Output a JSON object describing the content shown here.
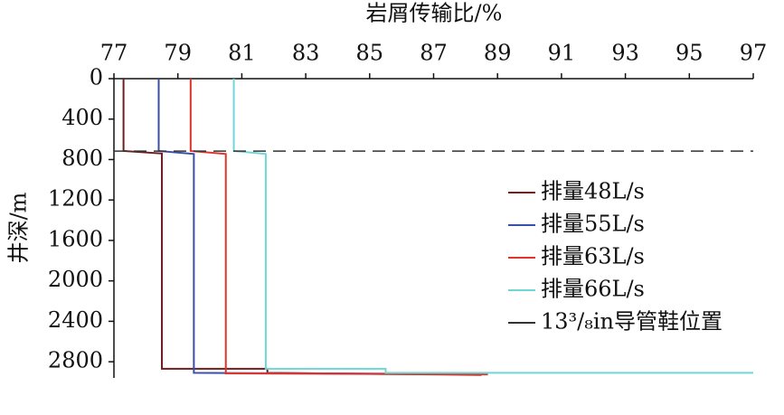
{
  "chart_data": {
    "type": "line",
    "xlabel": "岩屑传输比/%",
    "ylabel": "井深/m",
    "xlim": [
      77,
      97
    ],
    "xticks": [
      77,
      79,
      81,
      83,
      85,
      87,
      89,
      91,
      93,
      95,
      97
    ],
    "ylim": [
      0,
      2960
    ],
    "yticks": [
      0,
      400,
      800,
      1200,
      1600,
      2000,
      2400,
      2800
    ],
    "y_inverted": true,
    "x_axis_position": "top",
    "legend": "right",
    "series": [
      {
        "name": "排量48L/s",
        "color": "#6b1f1f",
        "x": [
          77.3,
          77.3,
          78.5,
          78.5,
          81.8,
          81.8,
          88.5
        ],
        "values": [
          0,
          715,
          740,
          2870,
          2870,
          2910,
          2930
        ]
      },
      {
        "name": "排量55L/s",
        "color": "#3a4fa8",
        "x": [
          78.4,
          78.4,
          79.5,
          79.5,
          86.7
        ],
        "values": [
          0,
          715,
          745,
          2910,
          2920
        ]
      },
      {
        "name": "排量63L/s",
        "color": "#e0352b",
        "x": [
          79.4,
          79.4,
          80.5,
          80.5,
          88.7
        ],
        "values": [
          0,
          715,
          745,
          2915,
          2925
        ]
      },
      {
        "name": "排量66L/s",
        "color": "#6fd6d6",
        "x": [
          80.75,
          80.75,
          81.75,
          81.75,
          85.5,
          85.5,
          97
        ],
        "values": [
          0,
          715,
          745,
          2870,
          2870,
          2910,
          2910
        ]
      },
      {
        "name": "13³/₈in导管鞋位置",
        "color": "#333333",
        "dashed": true,
        "x": [
          77,
          97
        ],
        "values": [
          716,
          716
        ]
      }
    ]
  }
}
